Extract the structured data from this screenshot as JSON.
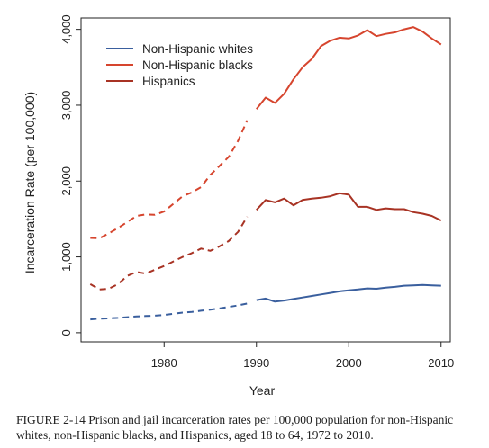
{
  "chart_data": {
    "type": "line",
    "xlabel": "Year",
    "ylabel": "Incarceration Rate (per 100,000)",
    "xlim": [
      1971,
      2011
    ],
    "ylim": [
      -120,
      4150
    ],
    "x_ticks": [
      1980,
      1990,
      2000,
      2010
    ],
    "x_tick_labels": [
      "1980",
      "1990",
      "2000",
      "2010"
    ],
    "y_ticks": [
      0,
      1000,
      2000,
      3000,
      4000
    ],
    "y_tick_labels": [
      "0",
      "1,000",
      "2,000",
      "3,000",
      "4,000"
    ],
    "grid": false,
    "legend_position": "top-left",
    "dashed_until_year": 1989,
    "series": [
      {
        "name": "Non-Hispanic whites",
        "color": "#3a5f9e",
        "x": [
          1972,
          1973,
          1974,
          1975,
          1976,
          1977,
          1978,
          1979,
          1980,
          1981,
          1982,
          1983,
          1984,
          1985,
          1986,
          1987,
          1988,
          1989,
          1990,
          1991,
          1992,
          1993,
          1994,
          1995,
          1996,
          1997,
          1998,
          1999,
          2000,
          2001,
          2002,
          2003,
          2004,
          2005,
          2006,
          2007,
          2008,
          2009,
          2010
        ],
        "values": [
          175,
          185,
          190,
          195,
          205,
          215,
          220,
          225,
          235,
          250,
          265,
          275,
          290,
          305,
          320,
          340,
          360,
          385,
          430,
          450,
          410,
          425,
          445,
          465,
          485,
          505,
          525,
          545,
          560,
          570,
          585,
          580,
          595,
          605,
          620,
          625,
          630,
          625,
          620
        ]
      },
      {
        "name": "Non-Hispanic blacks",
        "color": "#d6452e",
        "x": [
          1972,
          1973,
          1974,
          1975,
          1976,
          1977,
          1978,
          1979,
          1980,
          1981,
          1982,
          1983,
          1984,
          1985,
          1986,
          1987,
          1988,
          1989,
          1990,
          1991,
          1992,
          1993,
          1994,
          1995,
          1996,
          1997,
          1998,
          1999,
          2000,
          2001,
          2002,
          2003,
          2004,
          2005,
          2006,
          2007,
          2008,
          2009,
          2010
        ],
        "values": [
          1250,
          1245,
          1310,
          1380,
          1460,
          1540,
          1560,
          1555,
          1600,
          1700,
          1800,
          1850,
          1920,
          2080,
          2200,
          2320,
          2530,
          2800,
          2950,
          3100,
          3030,
          3150,
          3340,
          3500,
          3610,
          3780,
          3850,
          3890,
          3880,
          3920,
          3990,
          3910,
          3940,
          3960,
          4000,
          4030,
          3970,
          3880,
          3800
        ]
      },
      {
        "name": "Hispanics",
        "color": "#a83324",
        "x": [
          1972,
          1973,
          1974,
          1975,
          1976,
          1977,
          1978,
          1979,
          1980,
          1981,
          1982,
          1983,
          1984,
          1985,
          1986,
          1987,
          1988,
          1989,
          1990,
          1991,
          1992,
          1993,
          1994,
          1995,
          1996,
          1997,
          1998,
          1999,
          2000,
          2001,
          2002,
          2003,
          2004,
          2005,
          2006,
          2007,
          2008,
          2009,
          2010
        ],
        "values": [
          640,
          570,
          580,
          640,
          750,
          800,
          780,
          830,
          880,
          940,
          1000,
          1050,
          1110,
          1080,
          1140,
          1210,
          1330,
          1530,
          1620,
          1750,
          1720,
          1770,
          1680,
          1750,
          1770,
          1780,
          1800,
          1840,
          1820,
          1660,
          1660,
          1620,
          1640,
          1630,
          1630,
          1590,
          1570,
          1540,
          1480
        ]
      }
    ]
  },
  "caption": {
    "label": "FIGURE 2-14",
    "text": "Prison and jail incarceration rates per 100,000 population for non-Hispanic whites, non-Hispanic blacks, and Hispanics, aged 18 to 64, 1972 to 2010."
  }
}
